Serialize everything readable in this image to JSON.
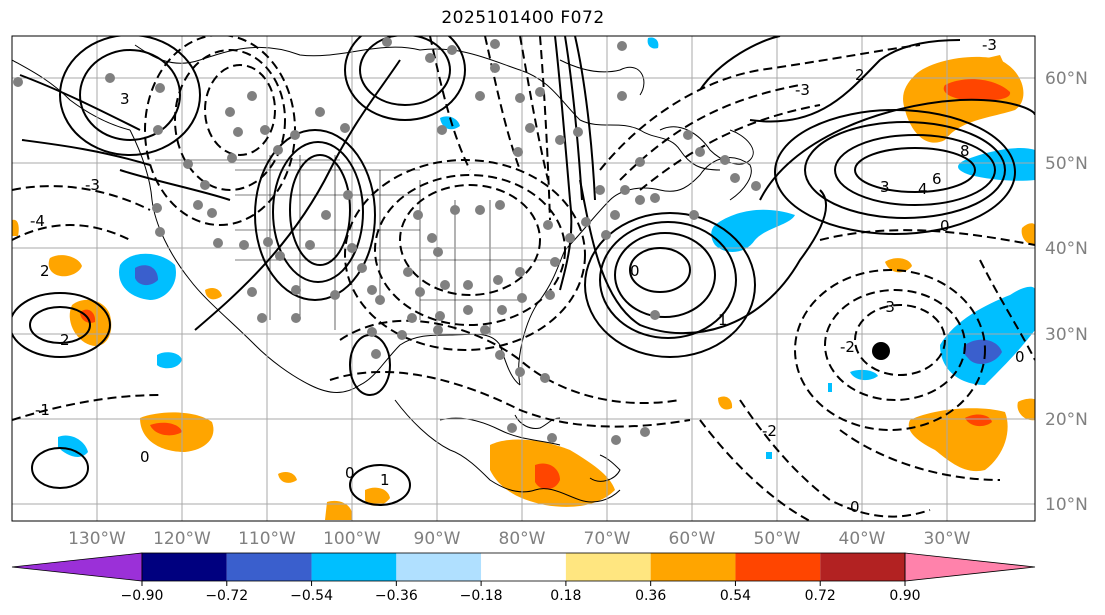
{
  "title": "2025101400 F072",
  "latitude_labels": [
    "60°N",
    "50°N",
    "40°N",
    "30°N",
    "20°N",
    "10°N"
  ],
  "longitude_labels": [
    "130°W",
    "120°W",
    "110°W",
    "100°W",
    "90°W",
    "80°W",
    "70°W",
    "60°W",
    "50°W",
    "40°W",
    "30°W"
  ],
  "colorbar": {
    "tick_labels": [
      "−0.90",
      "−0.72",
      "−0.54",
      "−0.36",
      "−0.18",
      "0.18",
      "0.36",
      "0.54",
      "0.72",
      "0.90"
    ],
    "colors": [
      "#9b30d8",
      "#00007f",
      "#3a5fcd",
      "#00bfff",
      "#b0e0ff",
      "#ffffff",
      "#ffe680",
      "#ffa500",
      "#ff4500",
      "#b22222",
      "#ff82ab"
    ]
  },
  "contour_labels": [
    "3",
    "2",
    "1",
    "0",
    "-1",
    "-2",
    "-3",
    "-4",
    "4",
    "6",
    "8"
  ],
  "colors": {
    "ocean": "#ffffff",
    "grid": "#a8a8a8",
    "contour": "#000000",
    "station_dot": "#808080"
  }
}
